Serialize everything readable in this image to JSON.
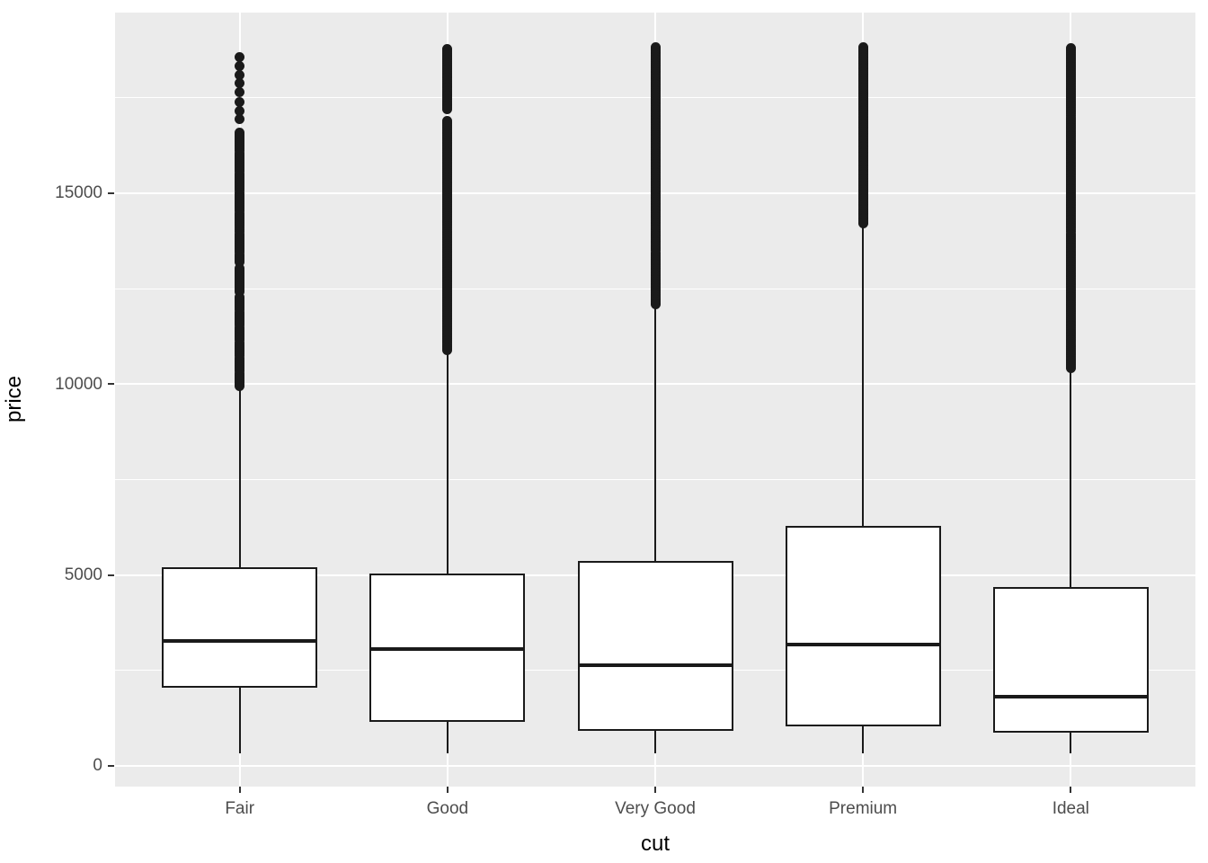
{
  "figure": {
    "kind": "ggplot-style boxplot",
    "x_axis_title": "cut",
    "y_axis_title": "price"
  },
  "chart_data": {
    "type": "boxplot",
    "title": "",
    "xlabel": "cut",
    "ylabel": "price",
    "categories": [
      "Fair",
      "Good",
      "Very Good",
      "Premium",
      "Ideal"
    ],
    "ylim": [
      -542,
      19733
    ],
    "y_major_ticks": [
      0,
      5000,
      10000,
      15000
    ],
    "y_tick_labels": [
      "0",
      "5000",
      "10000",
      "15000"
    ],
    "y_minor_gridlines": [
      2500,
      7500,
      12500,
      17500
    ],
    "grid": true,
    "legend": false,
    "colors": {
      "panel_background": "#EBEBEB",
      "gridline": "#FFFFFF",
      "box_fill": "#FFFFFF",
      "box_stroke": "#1A1A1A",
      "outlier": "#1A1A1A",
      "tick_label": "#4D4D4D",
      "axis_title": "#000000"
    },
    "series": [
      {
        "name": "Fair",
        "min": 337,
        "q1": 2050,
        "median": 3282,
        "q3": 5205.5,
        "whisker_low": 337,
        "whisker_high": 9938,
        "max": 18574,
        "outlier_clusters": [
          {
            "from": 18574,
            "to": 17640,
            "n": 5
          },
          {
            "from": 17380,
            "to": 16940,
            "n": 3
          },
          {
            "from": 16600,
            "to": 13200,
            "n": 70
          },
          {
            "from": 13040,
            "to": 12410,
            "n": 14
          },
          {
            "from": 12290,
            "to": 9940,
            "n": 48
          }
        ]
      },
      {
        "name": "Good",
        "min": 327,
        "q1": 1145,
        "median": 3050.5,
        "q3": 5028,
        "whisker_low": 327,
        "whisker_high": 10851,
        "max": 18788,
        "outlier_clusters": [
          {
            "from": 18788,
            "to": 17200,
            "n": 38
          },
          {
            "from": 16900,
            "to": 10900,
            "n": 140
          }
        ]
      },
      {
        "name": "Very Good",
        "min": 336,
        "q1": 912,
        "median": 2648,
        "q3": 5372.75,
        "whisker_low": 336,
        "whisker_high": 12063,
        "max": 18818,
        "outlier_clusters": [
          {
            "from": 18818,
            "to": 13500,
            "n": 130
          },
          {
            "from": 13440,
            "to": 12080,
            "n": 35
          }
        ]
      },
      {
        "name": "Premium",
        "min": 326,
        "q1": 1046,
        "median": 3185,
        "q3": 6296,
        "whisker_low": 326,
        "whisker_high": 14170,
        "max": 18823,
        "outlier_clusters": [
          {
            "from": 18823,
            "to": 16000,
            "n": 70
          },
          {
            "from": 15950,
            "to": 14200,
            "n": 45
          }
        ]
      },
      {
        "name": "Ideal",
        "min": 326,
        "q1": 878,
        "median": 1810,
        "q3": 4678.5,
        "whisker_low": 326,
        "whisker_high": 10377,
        "max": 18806,
        "outlier_clusters": [
          {
            "from": 18806,
            "to": 14000,
            "n": 115
          },
          {
            "from": 13940,
            "to": 10430,
            "n": 85
          }
        ]
      }
    ]
  }
}
